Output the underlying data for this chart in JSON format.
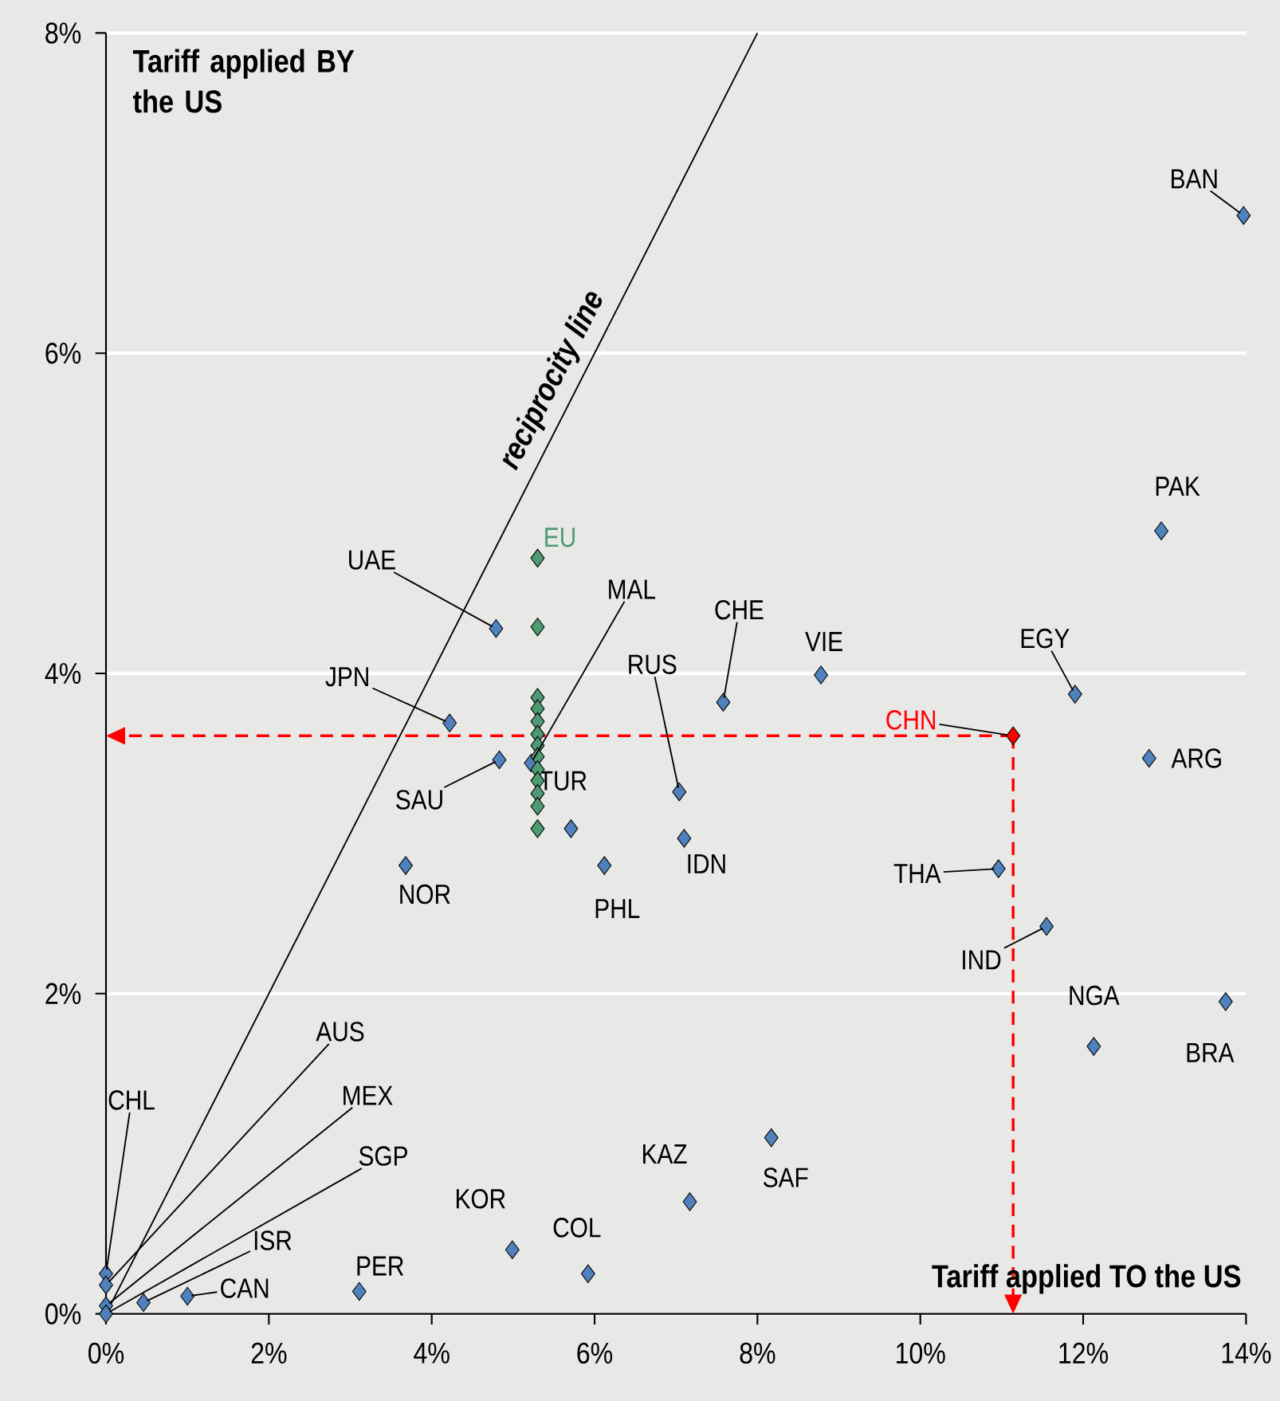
{
  "chart_data": {
    "type": "scatter",
    "xlabel": "Tariff applied TO the US",
    "ylabel": "Tariff applied BY the US",
    "xlim": [
      0,
      14
    ],
    "ylim": [
      0,
      8
    ],
    "xticks": [
      {
        "value": 0,
        "label": "0%"
      },
      {
        "value": 2,
        "label": "2%"
      },
      {
        "value": 4,
        "label": "4%"
      },
      {
        "value": 6,
        "label": "6%"
      },
      {
        "value": 8,
        "label": "8%"
      },
      {
        "value": 10,
        "label": "10%"
      },
      {
        "value": 12,
        "label": "12%"
      },
      {
        "value": 14,
        "label": "14%"
      }
    ],
    "yticks": [
      {
        "value": 0,
        "label": "0%"
      },
      {
        "value": 2,
        "label": "2%"
      },
      {
        "value": 4,
        "label": "4%"
      },
      {
        "value": 6,
        "label": "6%"
      },
      {
        "value": 8,
        "label": "8%"
      }
    ],
    "grid": "y",
    "marker": "diamond",
    "series": [
      {
        "color": "#4f81bd",
        "x": [
          13.97,
          12.96,
          8.78,
          7.58,
          11.9,
          12.81,
          7.04,
          7.1,
          10.96,
          11.55,
          13.75,
          12.13,
          8.17,
          7.17,
          4.79,
          4.22,
          4.83,
          5.22,
          5.71,
          3.68,
          6.12,
          4.99,
          5.92,
          3.11,
          1.0,
          0.46,
          0,
          0,
          0,
          0
        ],
        "values": [
          6.86,
          4.89,
          3.99,
          3.82,
          3.87,
          3.47,
          3.26,
          2.97,
          2.78,
          2.42,
          1.95,
          1.67,
          1.1,
          0.7,
          4.28,
          3.69,
          3.46,
          3.44,
          3.03,
          2.8,
          2.8,
          0.4,
          0.25,
          0.14,
          0.11,
          0.07,
          0.25,
          0.18,
          0.05,
          0
        ]
      },
      {
        "name": "EU",
        "color": "#4e9a72",
        "x": [
          5.3,
          5.3,
          5.3,
          5.3,
          5.3,
          5.3,
          5.3,
          5.3,
          5.3,
          5.3,
          5.3,
          5.3,
          5.3
        ],
        "values": [
          4.72,
          4.29,
          3.85,
          3.78,
          3.7,
          3.62,
          3.55,
          3.48,
          3.4,
          3.33,
          3.25,
          3.17,
          3.03
        ]
      },
      {
        "name": "CHN",
        "color": "#ff0000",
        "x": [
          11.14
        ],
        "values": [
          3.61
        ]
      },
      {
        "type": "line",
        "name": "reciprocity line",
        "marker": "none",
        "color": "#000000",
        "x": [
          0,
          8
        ],
        "values": [
          0,
          8
        ]
      }
    ],
    "ref_lines": [
      {
        "axis": "x",
        "value": 11.14,
        "color": "#ff0000",
        "line_style": "dashed"
      },
      {
        "axis": "y",
        "value": 3.61,
        "color": "#ff0000",
        "line_style": "dashed"
      }
    ],
    "annotations": [
      {
        "text": "BAN",
        "x": 13.97,
        "y": 6.86
      },
      {
        "text": "PAK",
        "x": 12.96,
        "y": 4.89
      },
      {
        "text": "VIE",
        "x": 8.78,
        "y": 3.99
      },
      {
        "text": "CHE",
        "x": 7.58,
        "y": 3.82
      },
      {
        "text": "EGY",
        "x": 11.9,
        "y": 3.87
      },
      {
        "text": "ARG",
        "x": 12.81,
        "y": 3.47
      },
      {
        "text": "RUS",
        "x": 7.04,
        "y": 3.26
      },
      {
        "text": "IDN",
        "x": 7.1,
        "y": 2.97
      },
      {
        "text": "THA",
        "x": 10.96,
        "y": 2.78
      },
      {
        "text": "IND",
        "x": 11.55,
        "y": 2.42
      },
      {
        "text": "BRA",
        "x": 13.75,
        "y": 1.95
      },
      {
        "text": "NGA",
        "x": 12.13,
        "y": 1.67
      },
      {
        "text": "SAF",
        "x": 8.17,
        "y": 1.1
      },
      {
        "text": "KAZ",
        "x": 7.17,
        "y": 0.7
      },
      {
        "text": "UAE",
        "x": 4.79,
        "y": 4.28
      },
      {
        "text": "JPN",
        "x": 4.22,
        "y": 3.69
      },
      {
        "text": "SAU",
        "x": 4.83,
        "y": 3.46
      },
      {
        "text": "MAL",
        "x": 5.22,
        "y": 3.44
      },
      {
        "text": "TUR",
        "x": 5.71,
        "y": 3.03
      },
      {
        "text": "NOR",
        "x": 3.68,
        "y": 2.8
      },
      {
        "text": "PHL",
        "x": 6.12,
        "y": 2.8
      },
      {
        "text": "KOR",
        "x": 4.99,
        "y": 0.4
      },
      {
        "text": "COL",
        "x": 5.92,
        "y": 0.25
      },
      {
        "text": "PER",
        "x": 3.11,
        "y": 0.14
      },
      {
        "text": "CAN",
        "x": 1.0,
        "y": 0.11
      },
      {
        "text": "ISR",
        "x": 0.46,
        "y": 0.07
      },
      {
        "text": "CHL",
        "x": 0,
        "y": 0.25
      },
      {
        "text": "AUS",
        "x": 0,
        "y": 0.18
      },
      {
        "text": "MEX",
        "x": 0,
        "y": 0.05
      },
      {
        "text": "SGP",
        "x": 0,
        "y": 0
      }
    ]
  }
}
